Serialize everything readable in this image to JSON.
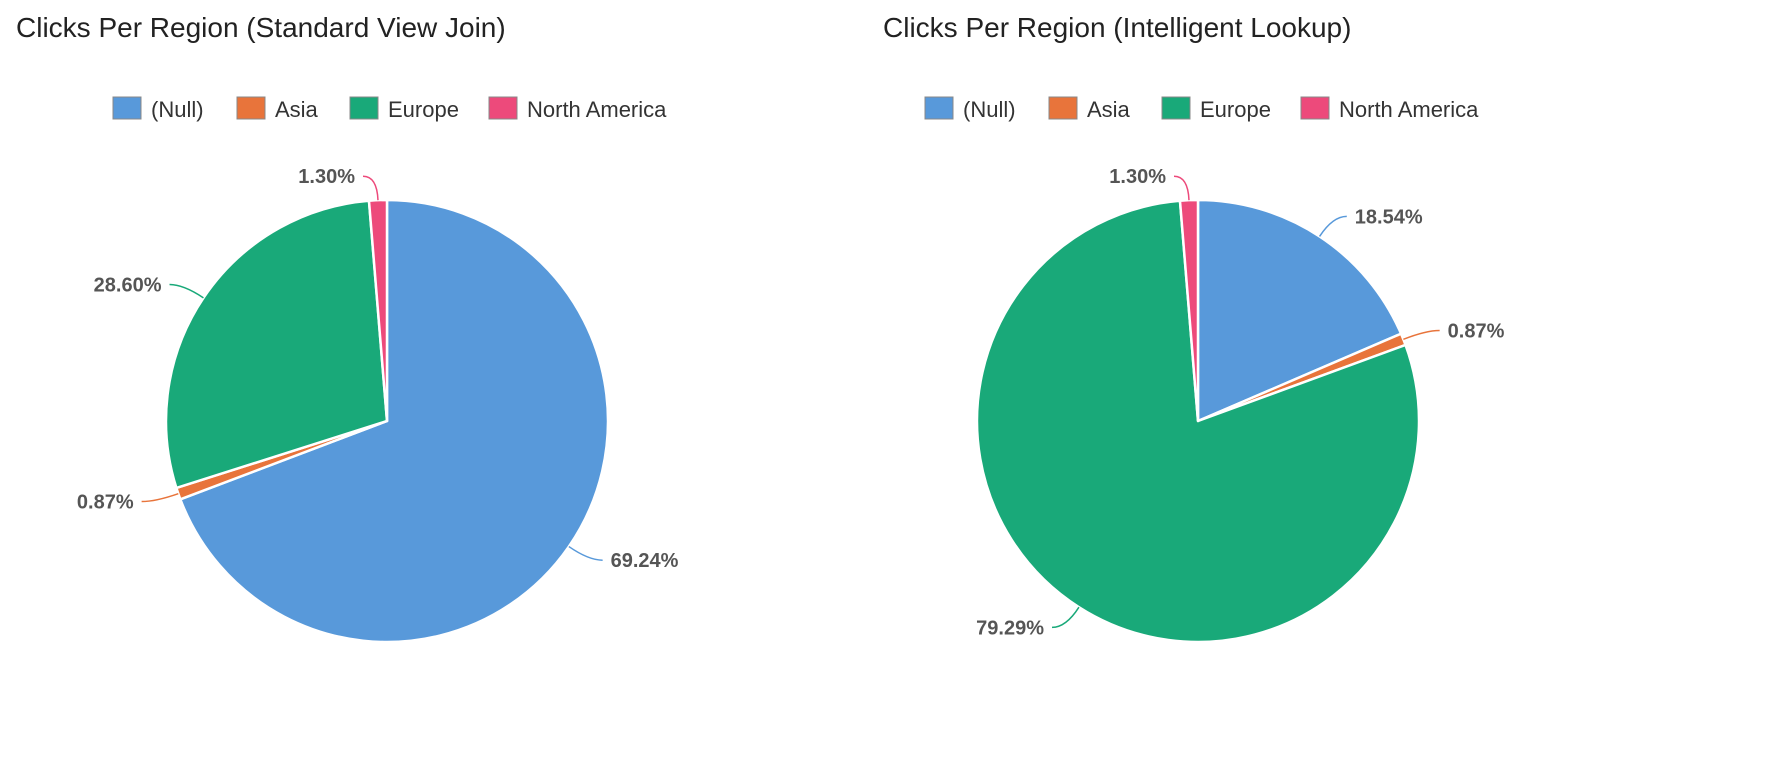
{
  "chart_data": [
    {
      "type": "pie",
      "title": "Clicks Per Region (Standard View Join)",
      "legend": [
        "(Null)",
        "Asia",
        "Europe",
        "North America"
      ],
      "legend_position": "top",
      "slices": [
        {
          "name": "(Null)",
          "value": 69.24,
          "label": "69.24%",
          "color": "#5899DA"
        },
        {
          "name": "Asia",
          "value": 0.87,
          "label": "0.87%",
          "color": "#E8743B"
        },
        {
          "name": "Europe",
          "value": 28.6,
          "label": "28.60%",
          "color": "#19A979"
        },
        {
          "name": "North America",
          "value": 1.3,
          "label": "1.30%",
          "color": "#ED4A7B"
        }
      ]
    },
    {
      "type": "pie",
      "title": "Clicks Per Region (Intelligent Lookup)",
      "legend": [
        "(Null)",
        "Asia",
        "Europe",
        "North America"
      ],
      "legend_position": "top",
      "slices": [
        {
          "name": "(Null)",
          "value": 18.54,
          "label": "18.54%",
          "color": "#5899DA"
        },
        {
          "name": "Asia",
          "value": 0.87,
          "label": "0.87%",
          "color": "#E8743B"
        },
        {
          "name": "Europe",
          "value": 79.29,
          "label": "79.29%",
          "color": "#19A979"
        },
        {
          "name": "North America",
          "value": 1.3,
          "label": "1.30%",
          "color": "#ED4A7B"
        }
      ]
    }
  ]
}
